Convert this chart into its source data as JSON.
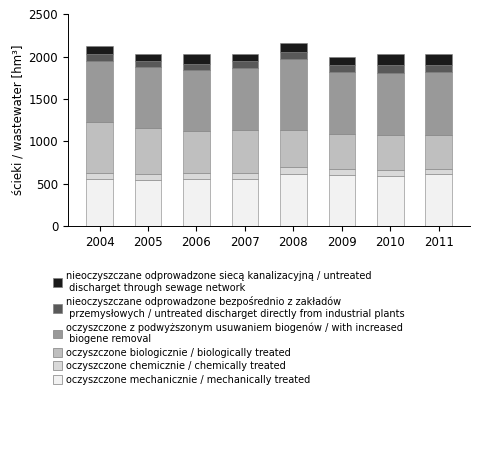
{
  "years": [
    2004,
    2005,
    2006,
    2007,
    2008,
    2009,
    2010,
    2011
  ],
  "categories": [
    "oczyszczone mechanicznie / mechanically treated",
    "oczyszczone chemicznie / chemically treated",
    "oczyszczone biologicznie / biologically treated",
    "oczyszczone z podwyższonym usuwaniem biogenów / with increased\n biogene removal",
    "nieoczyszczane odprowadzone bezpośrednio z zakładów\n przemysłowych / untreated discharget directly from industrial plants",
    "nieoczyszczane odprowadzone siecą kanalizacyjną / untreated\n discharget through sewage network"
  ],
  "colors": [
    "#f2f2f2",
    "#d9d9d9",
    "#bfbfbf",
    "#999999",
    "#595959",
    "#1a1a1a"
  ],
  "data": {
    "mechanically": [
      560,
      545,
      560,
      560,
      620,
      600,
      595,
      610
    ],
    "chemically": [
      70,
      70,
      70,
      65,
      75,
      70,
      70,
      65
    ],
    "biologically": [
      600,
      545,
      495,
      510,
      440,
      420,
      415,
      400
    ],
    "biogene": [
      720,
      720,
      720,
      730,
      830,
      730,
      720,
      740
    ],
    "industrial": [
      75,
      70,
      70,
      80,
      90,
      80,
      95,
      85
    ],
    "sewage": [
      100,
      75,
      110,
      80,
      105,
      90,
      135,
      130
    ]
  },
  "ylabel": "ścieki / wastewater [hm³]",
  "ylim": [
    0,
    2500
  ],
  "yticks": [
    0,
    500,
    1000,
    1500,
    2000,
    2500
  ],
  "bar_width": 0.55,
  "legend_fontsize": 7.0,
  "tick_fontsize": 8.5,
  "ylabel_fontsize": 8.5,
  "legend_entries": [
    "nieoczyszczane odprowadzone siecą kanalizacyjną / untreated\n discharget through sewage network",
    "nieoczyszczane odprowadzone bezpośrednio z zakładów\n przemysłowych / untreated discharget directly from industrial plants",
    "oczyszczone z podwyższonym usuwaniem biogenów / with increased\n biogene removal",
    "oczyszczone biologicznie / biologically treated",
    "oczyszczone chemicznie / chemically treated",
    "oczyszczone mechanicznie / mechanically treated"
  ]
}
